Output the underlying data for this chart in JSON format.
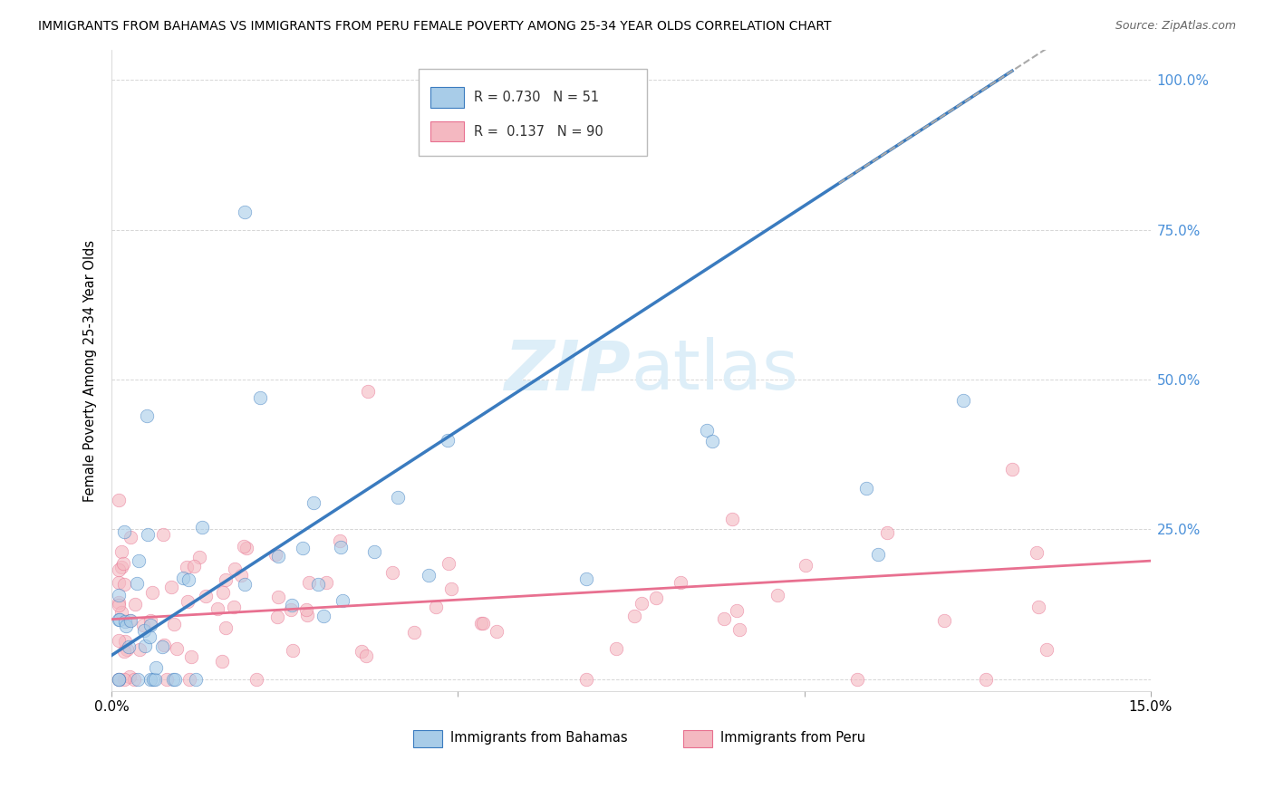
{
  "title": "IMMIGRANTS FROM BAHAMAS VS IMMIGRANTS FROM PERU FEMALE POVERTY AMONG 25-34 YEAR OLDS CORRELATION CHART",
  "source": "Source: ZipAtlas.com",
  "ylabel": "Female Poverty Among 25-34 Year Olds",
  "legend_bahamas": "Immigrants from Bahamas",
  "legend_peru": "Immigrants from Peru",
  "R_bahamas": 0.73,
  "N_bahamas": 51,
  "R_peru": 0.137,
  "N_peru": 90,
  "color_bahamas": "#a8cce8",
  "color_peru": "#f4b8c1",
  "color_line_bahamas": "#3a7bbf",
  "color_line_peru": "#e87090",
  "color_watermark": "#ddeef8",
  "background_color": "#ffffff",
  "grid_color": "#cccccc",
  "xlim": [
    0.0,
    0.15
  ],
  "ylim": [
    -0.02,
    1.05
  ],
  "yaxis_blue": "#4a90d9"
}
